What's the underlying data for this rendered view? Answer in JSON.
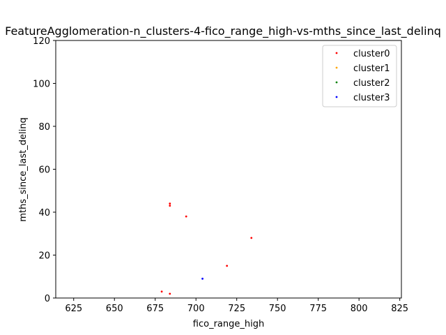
{
  "chart_data": {
    "type": "scatter",
    "title": "FeatureAgglomeration-n_clusters-4-fico_range_high-vs-mths_since_last_delinq",
    "xlabel": "fico_range_high",
    "ylabel": "mths_since_last_delinq",
    "xlim": [
      614,
      826
    ],
    "ylim": [
      0,
      120
    ],
    "xticks": [
      625,
      650,
      675,
      700,
      725,
      750,
      775,
      800,
      825
    ],
    "yticks": [
      0,
      20,
      40,
      60,
      80,
      100,
      120
    ],
    "grid": false,
    "legend_position": "top-right",
    "series": [
      {
        "name": "cluster0",
        "color": "#ff0000",
        "points": [
          {
            "x": 684,
            "y": 44
          },
          {
            "x": 684,
            "y": 43
          },
          {
            "x": 694,
            "y": 38
          },
          {
            "x": 734,
            "y": 28
          },
          {
            "x": 719,
            "y": 15
          },
          {
            "x": 679,
            "y": 3
          },
          {
            "x": 684,
            "y": 2
          }
        ]
      },
      {
        "name": "cluster1",
        "color": "#ffa500",
        "points": []
      },
      {
        "name": "cluster2",
        "color": "#008000",
        "points": []
      },
      {
        "name": "cluster3",
        "color": "#0000ff",
        "points": [
          {
            "x": 704,
            "y": 9
          }
        ]
      }
    ]
  }
}
